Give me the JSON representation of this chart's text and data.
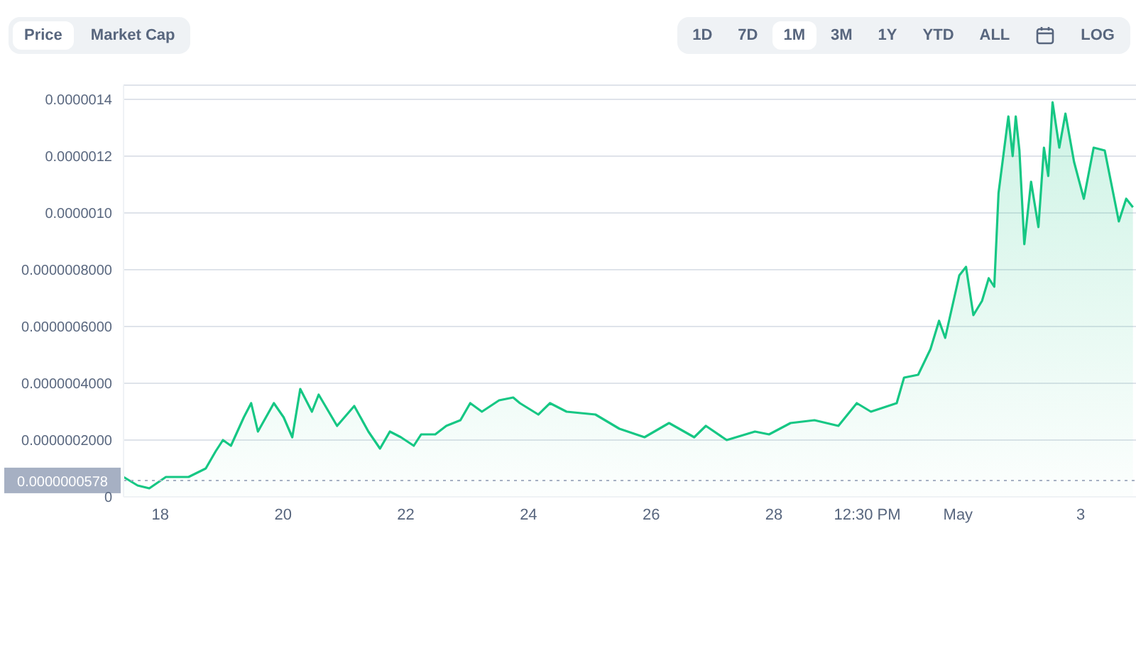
{
  "chart_data": {
    "type": "area",
    "xlim": [
      "--04-17T09:36",
      "--05-03T21:36"
    ],
    "xticks": [
      {
        "value": "--04-18",
        "label": "18"
      },
      {
        "value": "--04-20",
        "label": "20"
      },
      {
        "value": "--04-22",
        "label": "22"
      },
      {
        "value": "--04-24",
        "label": "24"
      },
      {
        "value": "--04-26",
        "label": "26"
      },
      {
        "value": "--04-28",
        "label": "28"
      },
      {
        "value": "--04-29T12:30",
        "label": "12:30 PM"
      },
      {
        "value": "--05-01",
        "label": "May"
      },
      {
        "value": "--05-03",
        "label": "3"
      }
    ],
    "ylim": [
      0,
      1.45e-06
    ],
    "yticks": [
      0,
      {
        "value": 2e-07,
        "label": "0.0000002000"
      },
      {
        "value": 4e-07,
        "label": "0.0000004000"
      },
      {
        "value": 6e-07,
        "label": "0.0000006000"
      },
      {
        "value": 8e-07,
        "label": "0.0000008000"
      },
      {
        "value": 1e-06,
        "label": "0.0000010"
      },
      {
        "value": 1.2e-06,
        "label": "0.0000012"
      },
      {
        "value": 1.4e-06,
        "label": "0.0000014"
      }
    ],
    "grid": "y",
    "marker": "none",
    "line_style": "solid",
    "x": [
      "--04-17T09:36",
      "--04-17T15:07",
      "--04-17T19:41",
      "--04-18T02:10",
      "--04-18T11:02",
      "--04-18T17:46",
      "--04-18T21:36",
      "--04-19T00:29",
      "--04-19T03:36",
      "--04-19T08:38",
      "--04-19T11:31",
      "--04-19T14:10",
      "--04-19T20:24",
      "--04-20T00:14",
      "--04-20T03:36",
      "--04-20T06:43",
      "--04-20T11:17",
      "--04-20T13:55",
      "--04-20T21:07",
      "--04-21T03:50",
      "--04-21T09:22",
      "--04-21T13:55",
      "--04-21T17:46",
      "--04-21T22:05",
      "--04-22T03:07",
      "--04-22T06:00",
      "--04-22T11:31",
      "--04-22T15:50",
      "--04-22T21:22",
      "--04-23T01:12",
      "--04-23T05:46",
      "--04-23T12:29",
      "--04-23T18:00",
      "--04-23T20:38",
      "--04-24T03:50",
      "--04-24T08:24",
      "--04-24T14:53",
      "--04-25T02:10",
      "--04-25T11:31",
      "--04-25T21:22",
      "--04-26T06:58",
      "--04-26T16:48",
      "--04-26T21:22",
      "--04-27T05:31",
      "--04-27T16:34",
      "--04-27T22:05",
      "--04-28T06:29",
      "--04-28T15:50",
      "--04-29T01:12",
      "--04-29T08:24",
      "--04-29T13:55",
      "--04-30T00:00",
      "--04-30T02:53",
      "--04-30T08:24",
      "--04-30T13:12",
      "--04-30T16:34",
      "--04-30T18:58",
      "--05-01T00:29",
      "--05-01T03:07",
      "--05-01T06:00",
      "--05-01T09:22",
      "--05-01T12:00",
      "--05-01T14:10",
      "--05-01T15:50",
      "--05-01T19:41",
      "--05-01T21:22",
      "--05-01T22:34",
      "--05-02T00:00",
      "--05-02T01:55",
      "--05-02T04:34",
      "--05-02T07:26",
      "--05-02T09:36",
      "--05-02T11:17",
      "--05-02T12:58",
      "--05-02T15:36",
      "--05-02T18:00",
      "--05-02T21:22",
      "--05-03T01:12",
      "--05-03T05:02",
      "--05-03T09:22",
      "--05-03T14:53",
      "--05-03T17:46",
      "--05-03T20:24"
    ],
    "series": [
      {
        "color": "#16c784",
        "values": [
          7e-08,
          4e-08,
          3e-08,
          7e-08,
          7e-08,
          1e-07,
          1.6e-07,
          2e-07,
          1.8e-07,
          2.8e-07,
          3.3e-07,
          2.3e-07,
          3.3e-07,
          2.8e-07,
          2.1e-07,
          3.8e-07,
          3e-07,
          3.6e-07,
          2.5e-07,
          3.2e-07,
          2.3e-07,
          1.7e-07,
          2.3e-07,
          2.1e-07,
          1.8e-07,
          2.2e-07,
          2.2e-07,
          2.5e-07,
          2.7e-07,
          3.3e-07,
          3e-07,
          3.4e-07,
          3.5e-07,
          3.3e-07,
          2.9e-07,
          3.3e-07,
          3e-07,
          2.9e-07,
          2.4e-07,
          2.1e-07,
          2.6e-07,
          2.1e-07,
          2.5e-07,
          2e-07,
          2.3e-07,
          2.2e-07,
          2.6e-07,
          2.7e-07,
          2.5e-07,
          3.3e-07,
          3e-07,
          3.3e-07,
          4.2e-07,
          4.3e-07,
          5.2e-07,
          6.2e-07,
          5.6e-07,
          7.8e-07,
          8.1e-07,
          6.4e-07,
          6.9e-07,
          7.7e-07,
          7.4e-07,
          1.07e-06,
          1.34e-06,
          1.2e-06,
          1.34e-06,
          1.22e-06,
          8.9e-07,
          1.11e-06,
          9.5e-07,
          1.23e-06,
          1.13e-06,
          1.39e-06,
          1.23e-06,
          1.35e-06,
          1.18e-06,
          1.05e-06,
          1.23e-06,
          1.22e-06,
          9.7e-07,
          1.05e-06,
          1.02e-06
        ]
      }
    ],
    "ref_lines": [
      {
        "axis": "y",
        "value": 5.78e-08,
        "label": "0.0000000578",
        "color": "#a6b0c3",
        "line_style": "dotted"
      }
    ],
    "annotations": [
      "Price",
      "Market Cap",
      "1D",
      "7D",
      "1M",
      "3M",
      "1Y",
      "YTD",
      "ALL",
      "LOG"
    ]
  }
}
